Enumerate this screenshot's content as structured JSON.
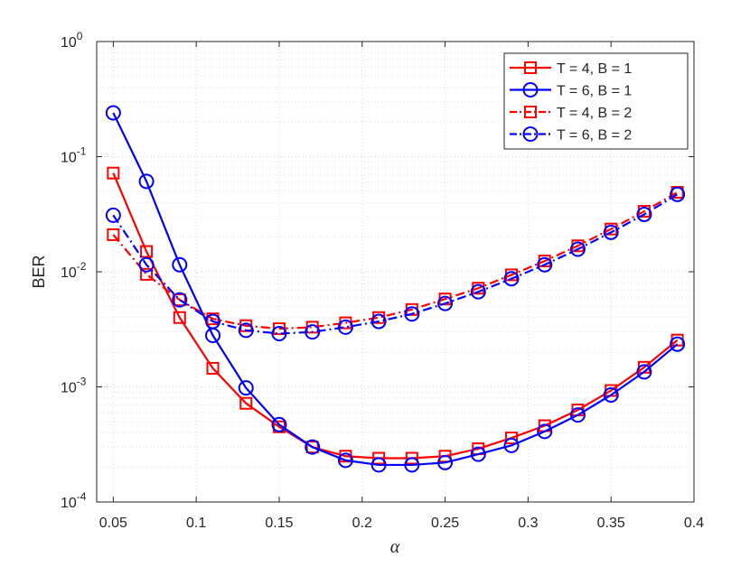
{
  "chart_data": {
    "type": "line",
    "title": "",
    "xlabel": "α",
    "ylabel": "BER",
    "xlim": [
      0.04,
      0.4
    ],
    "ylim": [
      0.0001,
      1
    ],
    "yscale": "log",
    "grid": true,
    "legend_position": "top-right",
    "x_ticks": [
      "0.05",
      "0.1",
      "0.15",
      "0.2",
      "0.25",
      "0.3",
      "0.35",
      "0.4"
    ],
    "x_tick_values": [
      0.05,
      0.1,
      0.15,
      0.2,
      0.25,
      0.3,
      0.35,
      0.4
    ],
    "y_ticks": [
      {
        "value": 0.0001,
        "base": "10",
        "exp": "-4"
      },
      {
        "value": 0.001,
        "base": "10",
        "exp": "-3"
      },
      {
        "value": 0.01,
        "base": "10",
        "exp": "-2"
      },
      {
        "value": 0.1,
        "base": "10",
        "exp": "-1"
      },
      {
        "value": 1,
        "base": "10",
        "exp": "0"
      }
    ],
    "x": [
      0.05,
      0.07,
      0.09,
      0.11,
      0.13,
      0.15,
      0.17,
      0.19,
      0.21,
      0.23,
      0.25,
      0.27,
      0.29,
      0.31,
      0.33,
      0.35,
      0.37,
      0.39
    ],
    "series": [
      {
        "name": "T = 4, B = 1",
        "color": "#ff0000",
        "dash": "solid",
        "marker": "square",
        "values": [
          0.072,
          0.015,
          0.004,
          0.00145,
          0.00072,
          0.00045,
          0.0003,
          0.00025,
          0.00024,
          0.00024,
          0.00025,
          0.00029,
          0.00036,
          0.00046,
          0.00063,
          0.00093,
          0.00148,
          0.00255
        ]
      },
      {
        "name": "T = 6, B = 1",
        "color": "#0000ff",
        "dash": "solid",
        "marker": "circle",
        "values": [
          0.24,
          0.061,
          0.0115,
          0.0028,
          0.00098,
          0.00047,
          0.0003,
          0.00023,
          0.00021,
          0.00021,
          0.00022,
          0.00026,
          0.00031,
          0.00041,
          0.00057,
          0.00085,
          0.00135,
          0.00235
        ]
      },
      {
        "name": "T = 4, B = 2",
        "color": "#ff0000",
        "dash": "dashdot",
        "marker": "square",
        "values": [
          0.021,
          0.0095,
          0.0057,
          0.0039,
          0.0034,
          0.0032,
          0.0033,
          0.0036,
          0.004,
          0.0047,
          0.0058,
          0.0072,
          0.0094,
          0.0124,
          0.0168,
          0.0235,
          0.0335,
          0.049
        ]
      },
      {
        "name": "T = 6, B = 2",
        "color": "#0000ff",
        "dash": "dashdot",
        "marker": "circle",
        "values": [
          0.031,
          0.0115,
          0.0057,
          0.0037,
          0.0031,
          0.0029,
          0.003,
          0.0033,
          0.0037,
          0.0043,
          0.0053,
          0.0067,
          0.0087,
          0.0115,
          0.0157,
          0.022,
          0.0315,
          0.047
        ]
      }
    ]
  }
}
